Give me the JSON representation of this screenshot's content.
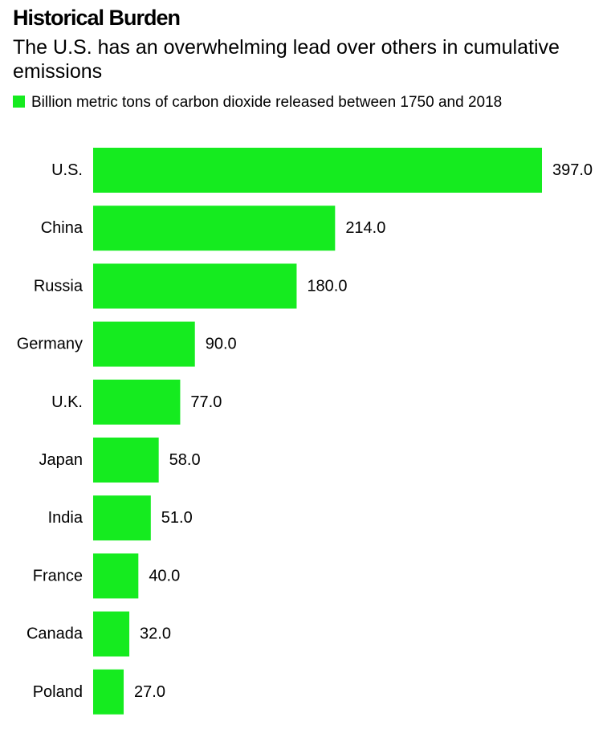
{
  "chart_data": {
    "type": "bar",
    "orientation": "horizontal",
    "title": "Historical Burden",
    "subtitle": "The U.S. has an overwhelming lead over others in cumulative emissions",
    "legend": "Billion metric tons of carbon dioxide released between 1750 and 2018",
    "categories": [
      "U.S.",
      "China",
      "Russia",
      "Germany",
      "U.K.",
      "Japan",
      "India",
      "France",
      "Canada",
      "Poland"
    ],
    "values": [
      397.0,
      214.0,
      180.0,
      90.0,
      77.0,
      58.0,
      51.0,
      40.0,
      32.0,
      27.0
    ],
    "value_labels": [
      "397.0",
      "214.0",
      "180.0",
      "90.0",
      "77.0",
      "58.0",
      "51.0",
      "40.0",
      "32.0",
      "27.0"
    ],
    "bar_color": "#15eb1f",
    "grid": false,
    "legend_position": "top-left"
  }
}
